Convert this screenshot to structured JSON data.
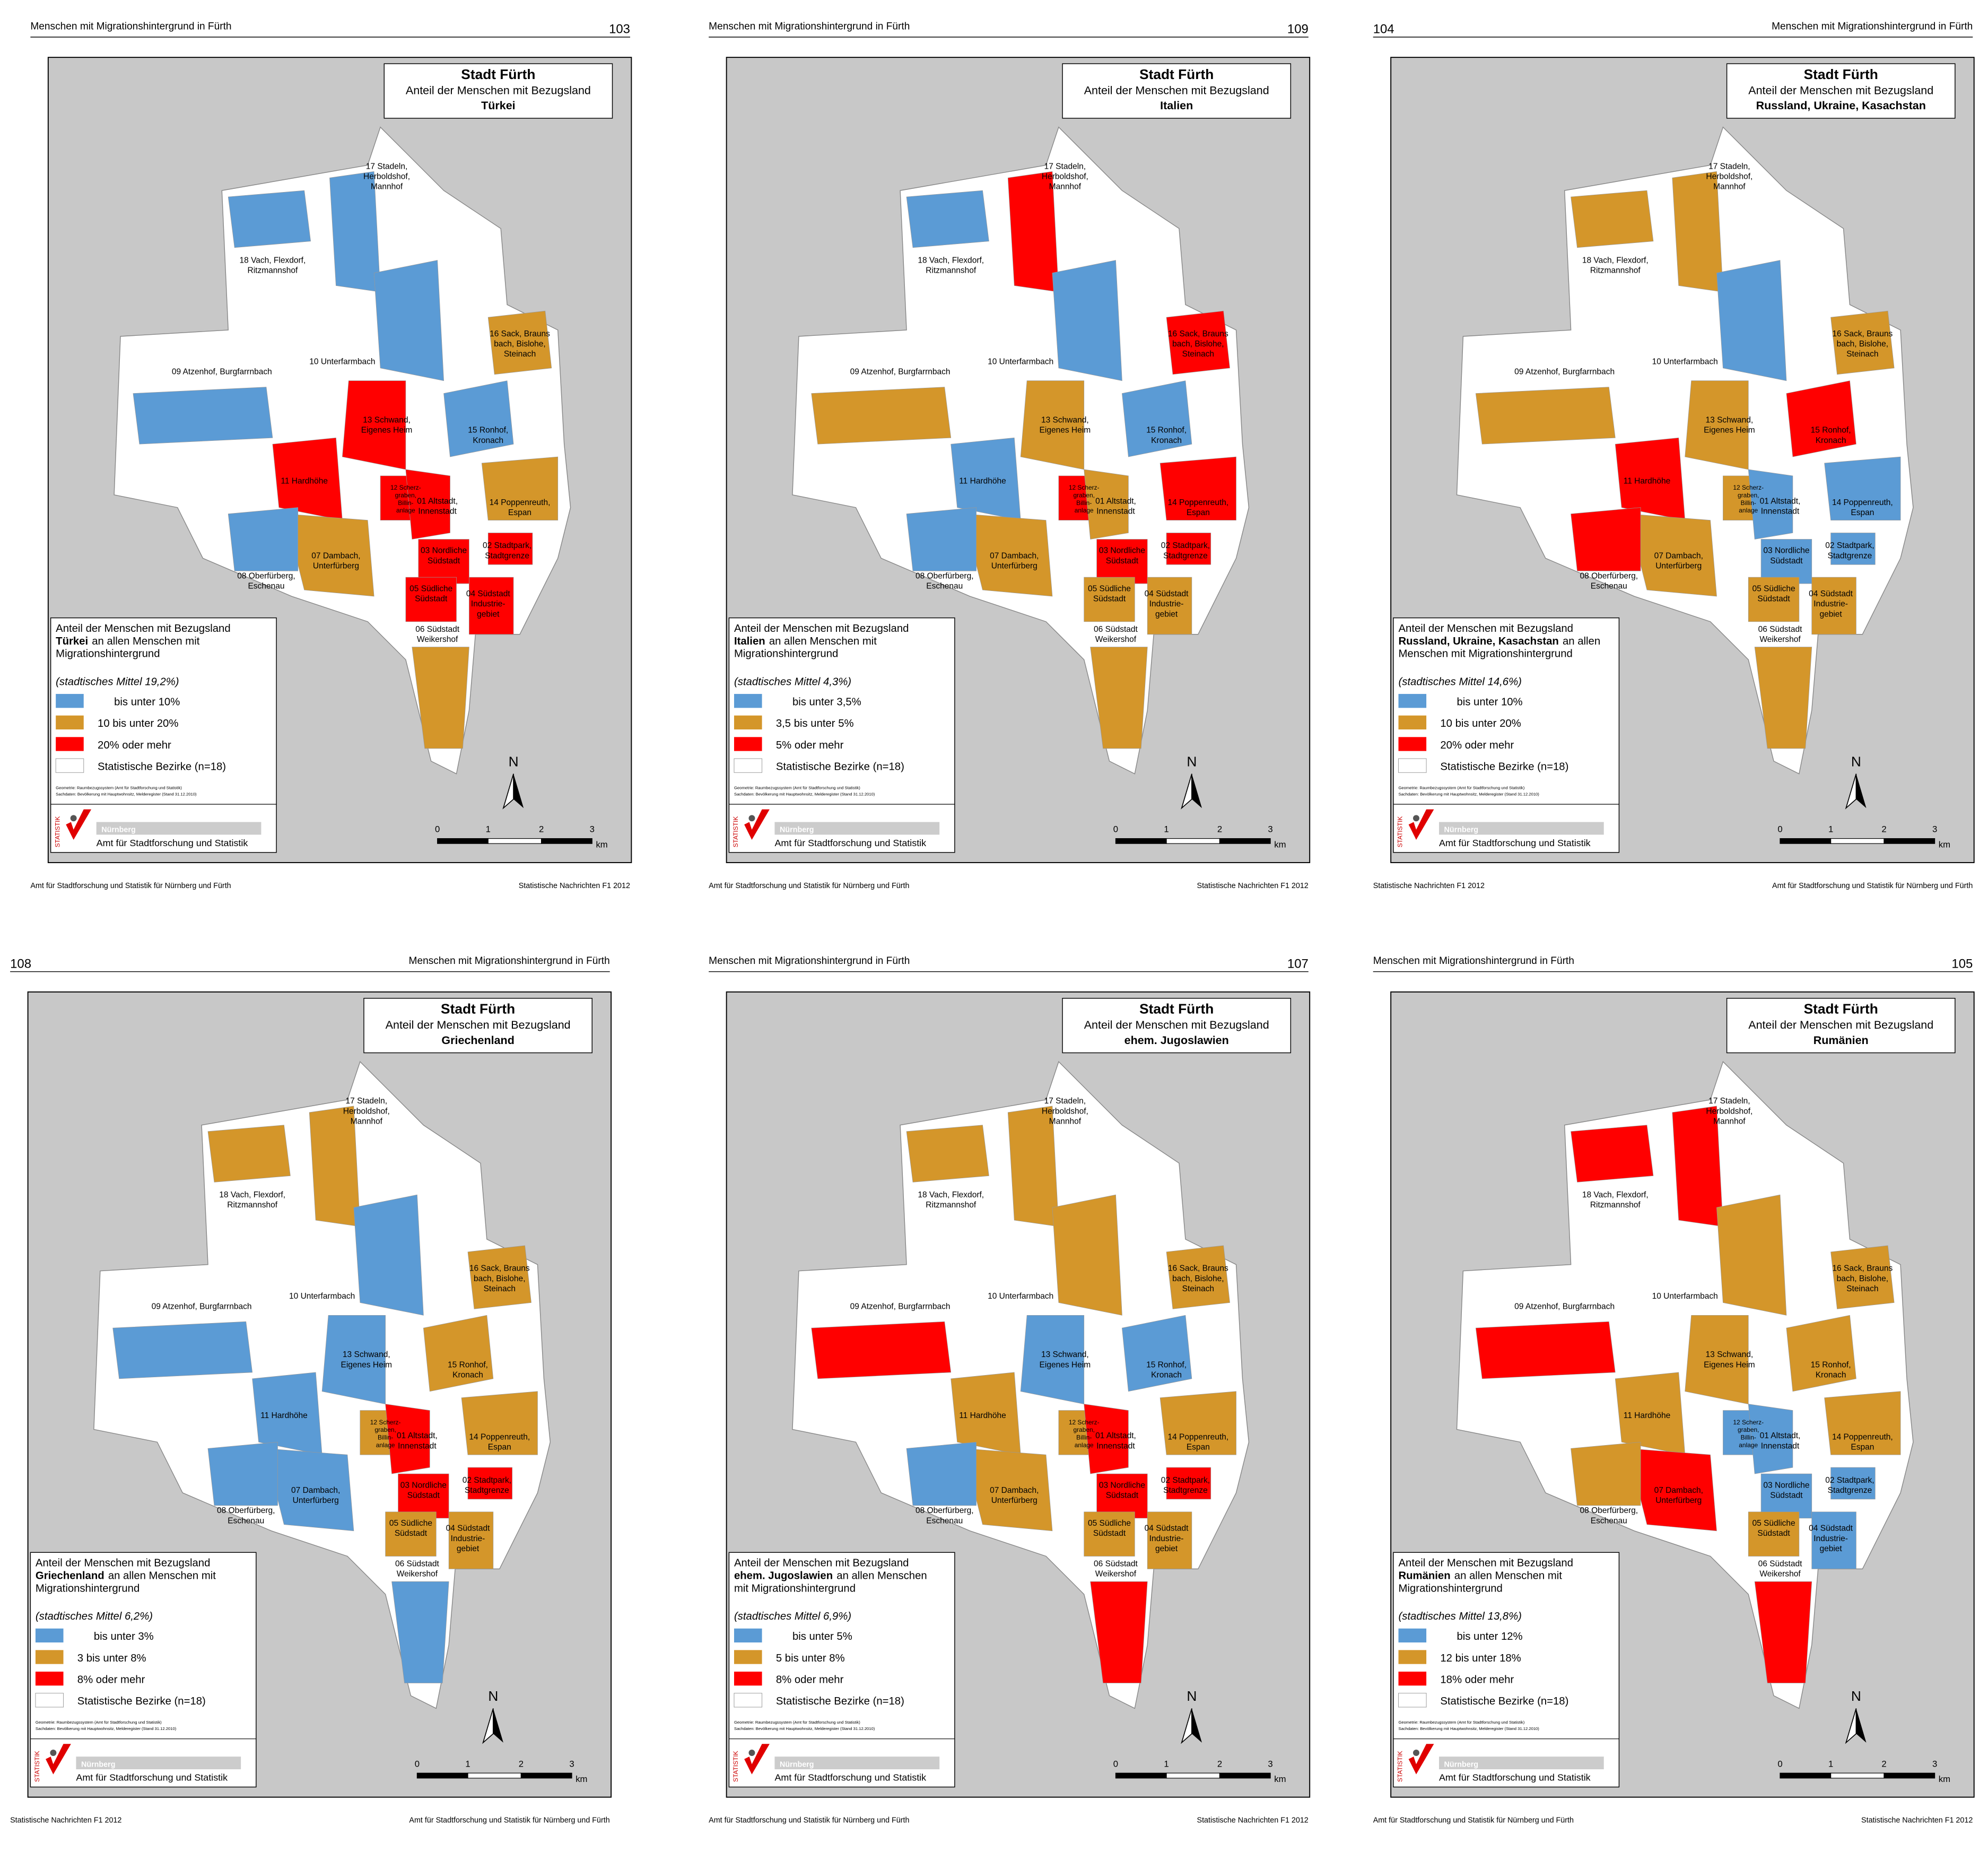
{
  "districts": [
    [
      "18 Vach, Flexdorf,",
      "Ritzmannshof"
    ],
    [
      "17 Stadeln,",
      "Herboldshof,",
      "Mannhof"
    ],
    [
      "16 Sack, Brauns",
      "bach, Bislohe,",
      "Steinach"
    ],
    [
      "10 Unterfarmbach"
    ],
    [
      "09 Atzenhof, Burgfarrnbach"
    ],
    [
      "13 Schwand,",
      "Eigenes Heim"
    ],
    [
      "15 Ronhof,",
      "Kronach"
    ],
    [
      "11 Hardhöhe"
    ],
    [
      "12 Scherz-",
      "graben,",
      "Billin-",
      "anlage"
    ],
    [
      "01 Altstadt,",
      "Innenstadt"
    ],
    [
      "14 Poppenreuth,",
      "Espan"
    ],
    [
      "07 Dambach,",
      "Unterfürberg"
    ],
    [
      "03 Nordliche",
      "Südstadt"
    ],
    [
      "02 Stadtpark,",
      "Stadtgrenze"
    ],
    [
      "08 Oberfürberg,",
      "Eschenau"
    ],
    [
      "05 Südliche",
      "Südstadt"
    ],
    [
      "04 Südstadt",
      "Industrie-",
      "gebiet"
    ],
    [
      "06 Südstadt",
      "Weikershof"
    ]
  ],
  "title": "Stadt Fürth",
  "subtitle": "Anteil der Menschen mit Bezugsland",
  "districts_legend": "Statistische Bezirke (n=18)",
  "sources": [
    "Geometrie: Raumbezugssystem (Amt für Stadtforschung und Statistik)",
    "Sachdaten: Bevölkerung mit Hauptwohnsitz, Melderegister (Stand 31.12.2010)"
  ],
  "logo": {
    "brand": "STATISTIK",
    "city": "Nürnberg",
    "office": "Amt für Stadtforschung und Statistik"
  },
  "north": "N",
  "scale": {
    "ticks": [
      "0",
      "1",
      "2",
      "3"
    ],
    "unit": "km"
  },
  "pages": [
    {
      "header": "Menschen mit Migrationshintergrund in Fürth",
      "page_number": "103",
      "footer_left": "Amt für Stadtforschung und Statistik für Nürnberg und Fürth",
      "footer_right": "Statistische Nachrichten F1 2012",
      "country": "Türkei",
      "legend_lines": [
        {
          "text": "Anteil der Menschen mit Bezugsland"
        },
        {
          "bold": "Türkei",
          "text": "an allen Menschen mit"
        },
        {
          "text": "Migrationshintergrund"
        }
      ],
      "mean": "(stadtisches Mittel 19,2%)",
      "classes": [
        {
          "label": "bis unter 10%",
          "color": "#5b9bd5"
        },
        {
          "label": "10 bis unter 20%",
          "color": "#d4962a"
        },
        {
          "label": "20% oder mehr",
          "color": "#ff0000"
        }
      ]
    },
    {
      "header": "Menschen mit Migrationshintergrund in Fürth",
      "page_number": "109",
      "footer_left": "Amt für Stadtforschung und Statistik für Nürnberg und Fürth",
      "footer_right": "Statistische Nachrichten F1 2012",
      "country": "Italien",
      "legend_lines": [
        {
          "text": "Anteil der Menschen mit Bezugsland"
        },
        {
          "bold": "Italien",
          "text": "an allen Menschen mit"
        },
        {
          "text": "Migrationshintergrund"
        }
      ],
      "mean": "(stadtisches Mittel 4,3%)",
      "classes": [
        {
          "label": "bis unter 3,5%",
          "color": "#5b9bd5"
        },
        {
          "label": "3,5 bis unter 5%",
          "color": "#d4962a"
        },
        {
          "label": "5% oder mehr",
          "color": "#ff0000"
        }
      ]
    },
    {
      "header": "Menschen mit Migrationshintergrund in Fürth",
      "page_number": "104",
      "footer_left": "Statistische Nachrichten F1 2012",
      "footer_right": "Amt für Stadtforschung und Statistik für Nürnberg und Fürth",
      "country": "Russland, Ukraine, Kasachstan",
      "legend_lines": [
        {
          "text": "Anteil der Menschen mit Bezugsland"
        },
        {
          "bold": "Russland, Ukraine, Kasachstan",
          "text": "an allen"
        },
        {
          "text": "Menschen mit Migrationshintergrund"
        }
      ],
      "mean": "(stadtisches Mittel 14,6%)",
      "classes": [
        {
          "label": "bis unter 10%",
          "color": "#5b9bd5"
        },
        {
          "label": "10 bis unter 20%",
          "color": "#d4962a"
        },
        {
          "label": "20% oder mehr",
          "color": "#ff0000"
        }
      ]
    },
    {
      "header": "Menschen mit Migrationshintergrund in Fürth",
      "page_number": "108",
      "footer_left": "Statistische Nachrichten F1 2012",
      "footer_right": "Amt für Stadtforschung und Statistik für Nürnberg und Fürth",
      "country": "Griechenland",
      "legend_lines": [
        {
          "text": "Anteil der Menschen mit Bezugsland"
        },
        {
          "bold": "Griechenland",
          "text": "an allen Menschen mit"
        },
        {
          "text": "Migrationshintergrund"
        }
      ],
      "mean": "(stadtisches Mittel 6,2%)",
      "classes": [
        {
          "label": "bis unter 3%",
          "color": "#5b9bd5"
        },
        {
          "label": "3 bis unter 8%",
          "color": "#d4962a"
        },
        {
          "label": "8% oder mehr",
          "color": "#ff0000"
        }
      ]
    },
    {
      "header": "Menschen mit Migrationshintergrund in Fürth",
      "page_number": "107",
      "footer_left": "Amt für Stadtforschung und Statistik für Nürnberg und Fürth",
      "footer_right": "Statistische Nachrichten F1 2012",
      "country": "ehem. Jugoslawien",
      "legend_lines": [
        {
          "text": "Anteil der Menschen mit Bezugsland"
        },
        {
          "bold": "ehem. Jugoslawien",
          "text": "an allen Menschen"
        },
        {
          "text": "mit Migrationshintergrund"
        }
      ],
      "mean": "(stadtisches Mittel 6,9%)",
      "classes": [
        {
          "label": "bis unter 5%",
          "color": "#5b9bd5"
        },
        {
          "label": "5 bis unter 8%",
          "color": "#d4962a"
        },
        {
          "label": "8% oder mehr",
          "color": "#ff0000"
        }
      ]
    },
    {
      "header": "Menschen mit Migrationshintergrund in Fürth",
      "page_number": "105",
      "footer_left": "Amt für Stadtforschung und Statistik für Nürnberg und Fürth",
      "footer_right": "Statistische Nachrichten F1 2012",
      "country": "Rumänien",
      "legend_lines": [
        {
          "text": "Anteil der Menschen mit Bezugsland"
        },
        {
          "bold": "Rumänien",
          "text": "an allen Menschen mit"
        },
        {
          "text": "Migrationshintergrund"
        }
      ],
      "mean": "(stadtisches Mittel 13,8%)",
      "classes": [
        {
          "label": "bis unter 12%",
          "color": "#5b9bd5"
        },
        {
          "label": "12 bis unter 18%",
          "color": "#d4962a"
        },
        {
          "label": "18% oder mehr",
          "color": "#ff0000"
        }
      ]
    }
  ]
}
